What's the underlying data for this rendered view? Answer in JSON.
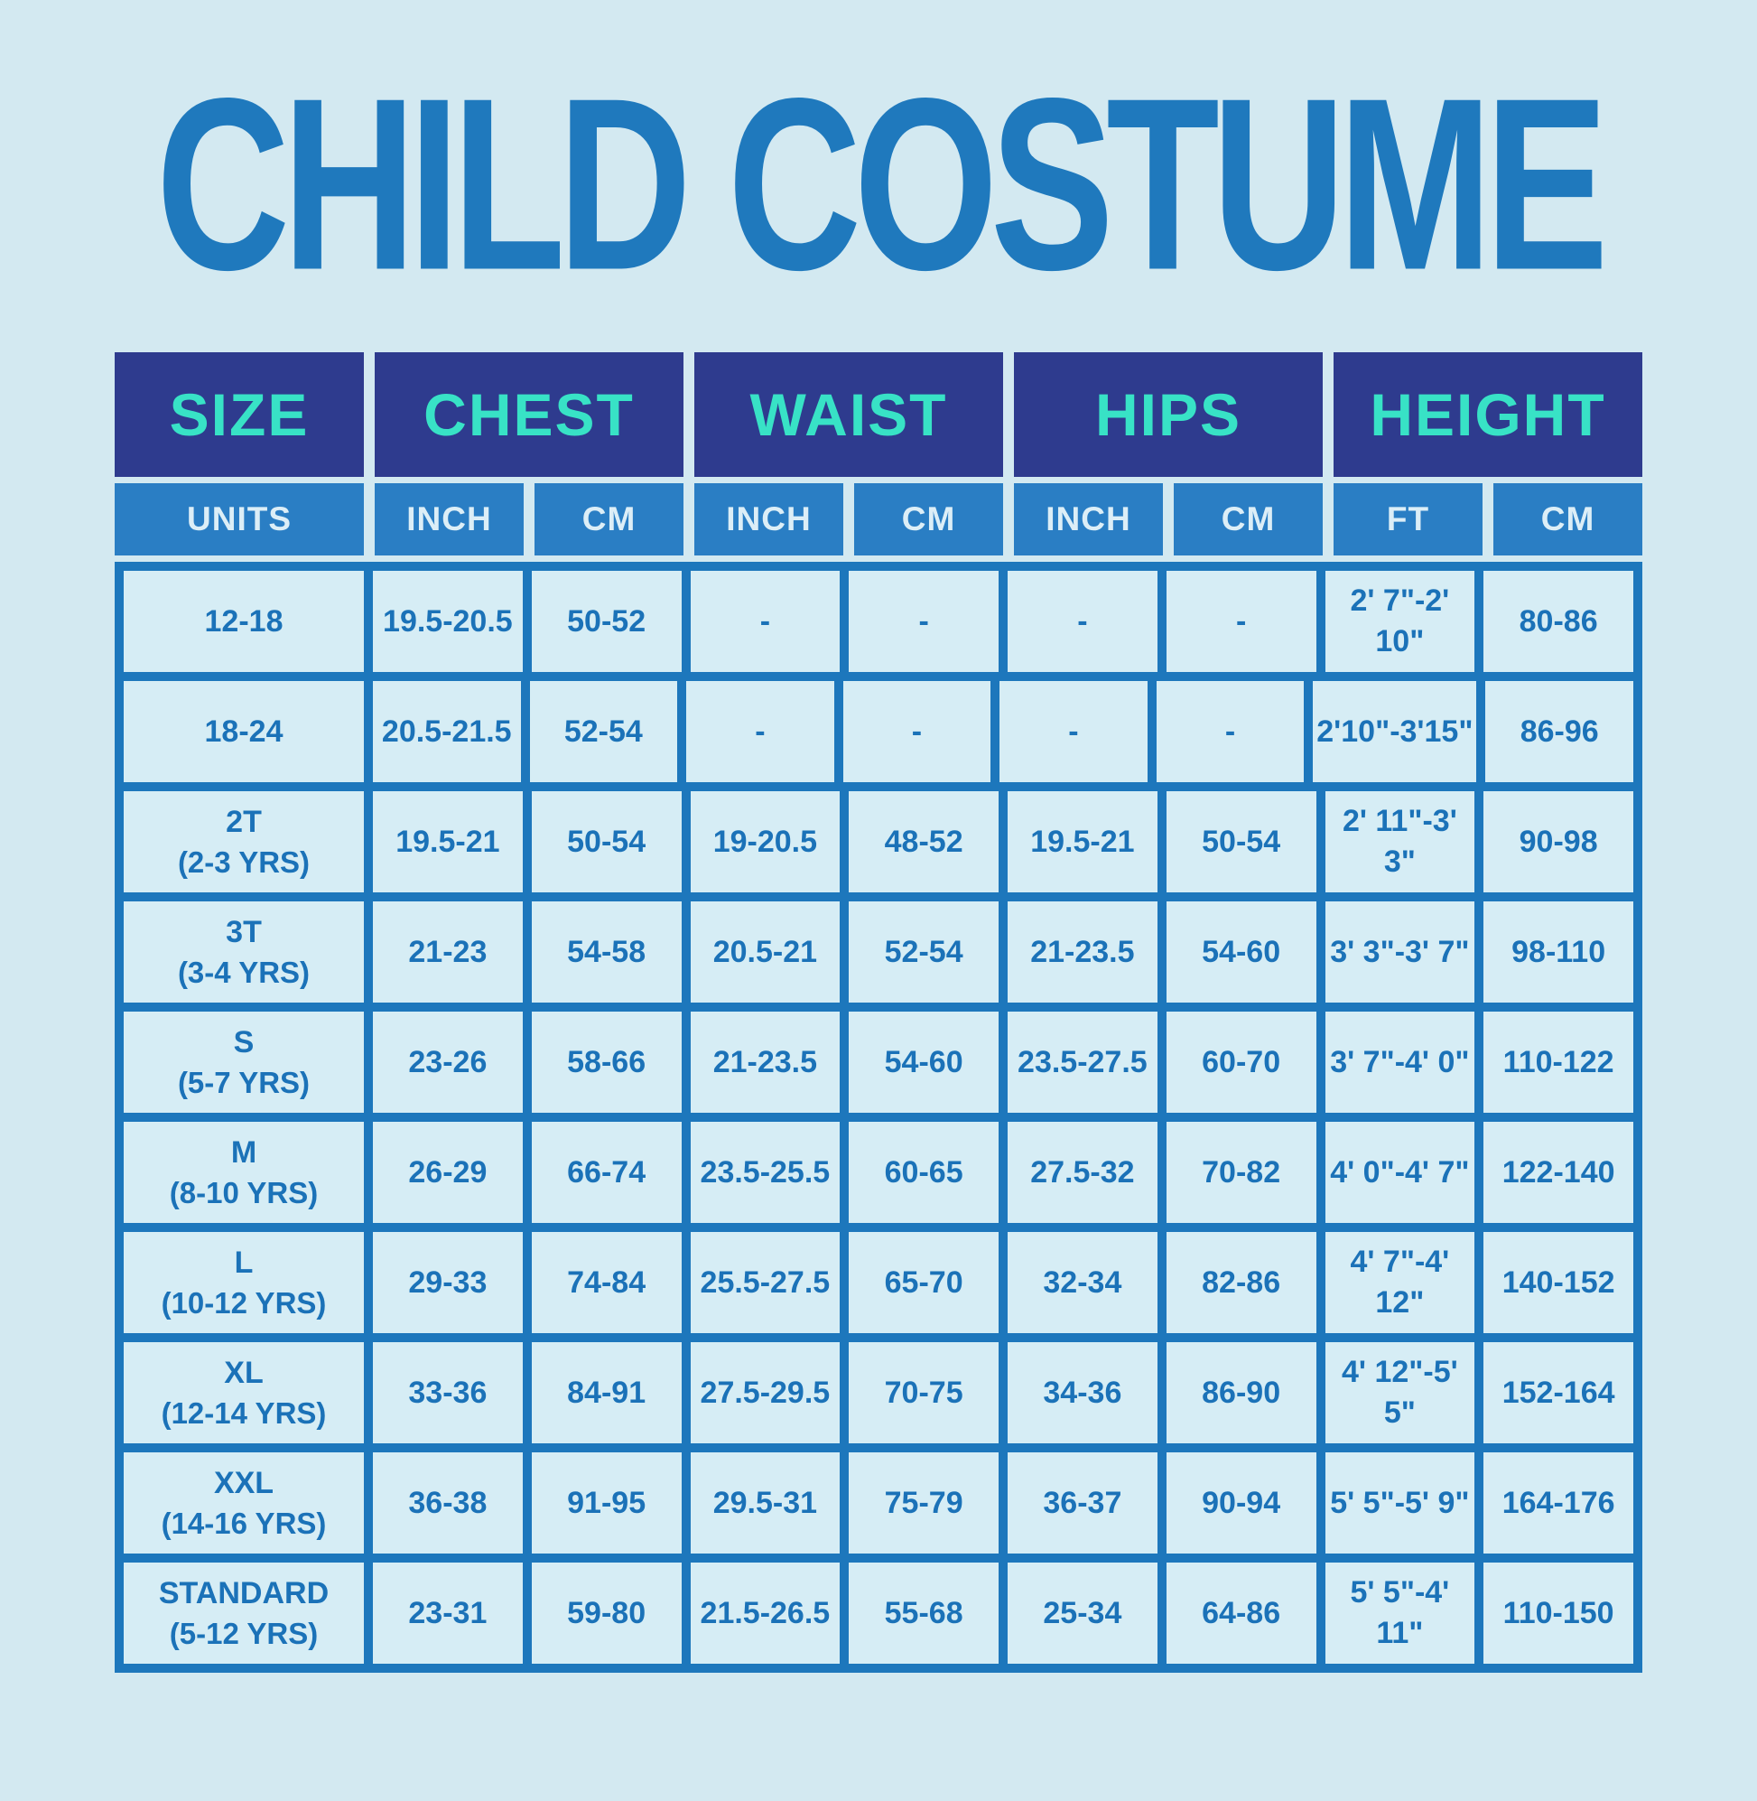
{
  "title": "CHILD COSTUME",
  "colors": {
    "page_background": "#d3e9f1",
    "title_blue": "#1f79bd",
    "header_navy": "#2e3b8e",
    "header_teal_text": "#38e2c6",
    "subheader_blue": "#2a7ec4",
    "subheader_text": "#dceef7",
    "grid_line_blue": "#1d77bc",
    "cell_background": "#d6edf5",
    "cell_text_blue": "#1b72b8"
  },
  "table": {
    "groups": [
      {
        "label": "SIZE",
        "span": 1
      },
      {
        "label": "CHEST",
        "span": 2
      },
      {
        "label": "WAIST",
        "span": 2
      },
      {
        "label": "HIPS",
        "span": 2
      },
      {
        "label": "HEIGHT",
        "span": 2
      }
    ],
    "units": [
      "UNITS",
      "INCH",
      "CM",
      "INCH",
      "CM",
      "INCH",
      "CM",
      "FT",
      "CM"
    ],
    "rows": [
      {
        "size": "12-18",
        "age": "",
        "cells": [
          "19.5-20.5",
          "50-52",
          "-",
          "-",
          "-",
          "-",
          "2' 7\"-2' 10\"",
          "80-86"
        ]
      },
      {
        "size": "18-24",
        "age": "",
        "cells": [
          "20.5-21.5",
          "52-54",
          "-",
          "-",
          "-",
          "-",
          "2'10\"-3'15\"",
          "86-96"
        ]
      },
      {
        "size": "2T",
        "age": "(2-3 YRS)",
        "cells": [
          "19.5-21",
          "50-54",
          "19-20.5",
          "48-52",
          "19.5-21",
          "50-54",
          "2' 11\"-3' 3\"",
          "90-98"
        ]
      },
      {
        "size": "3T",
        "age": "(3-4 YRS)",
        "cells": [
          "21-23",
          "54-58",
          "20.5-21",
          "52-54",
          "21-23.5",
          "54-60",
          "3' 3\"-3' 7\"",
          "98-110"
        ]
      },
      {
        "size": "S",
        "age": "(5-7 YRS)",
        "cells": [
          "23-26",
          "58-66",
          "21-23.5",
          "54-60",
          "23.5-27.5",
          "60-70",
          "3' 7\"-4' 0\"",
          "110-122"
        ]
      },
      {
        "size": "M",
        "age": "(8-10 YRS)",
        "cells": [
          "26-29",
          "66-74",
          "23.5-25.5",
          "60-65",
          "27.5-32",
          "70-82",
          "4' 0\"-4' 7\"",
          "122-140"
        ]
      },
      {
        "size": "L",
        "age": "(10-12 YRS)",
        "cells": [
          "29-33",
          "74-84",
          "25.5-27.5",
          "65-70",
          "32-34",
          "82-86",
          "4' 7\"-4' 12\"",
          "140-152"
        ]
      },
      {
        "size": "XL",
        "age": "(12-14 YRS)",
        "cells": [
          "33-36",
          "84-91",
          "27.5-29.5",
          "70-75",
          "34-36",
          "86-90",
          "4' 12\"-5' 5\"",
          "152-164"
        ]
      },
      {
        "size": "XXL",
        "age": "(14-16 YRS)",
        "cells": [
          "36-38",
          "91-95",
          "29.5-31",
          "75-79",
          "36-37",
          "90-94",
          "5' 5\"-5' 9\"",
          "164-176"
        ]
      },
      {
        "size": "STANDARD",
        "age": "(5-12 YRS)",
        "cells": [
          "23-31",
          "59-80",
          "21.5-26.5",
          "55-68",
          "25-34",
          "64-86",
          "5' 5\"-4' 11\"",
          "110-150"
        ]
      }
    ]
  },
  "chart_data": {
    "type": "table",
    "title": "CHILD COSTUME",
    "column_groups": [
      "SIZE",
      "CHEST",
      "WAIST",
      "HIPS",
      "HEIGHT"
    ],
    "columns": [
      "SIZE / UNITS",
      "CHEST INCH",
      "CHEST CM",
      "WAIST INCH",
      "WAIST CM",
      "HIPS INCH",
      "HIPS CM",
      "HEIGHT FT",
      "HEIGHT CM"
    ],
    "rows": [
      [
        "12-18",
        "19.5-20.5",
        "50-52",
        "-",
        "-",
        "-",
        "-",
        "2' 7\"-2' 10\"",
        "80-86"
      ],
      [
        "18-24",
        "20.5-21.5",
        "52-54",
        "-",
        "-",
        "-",
        "-",
        "2'10\"-3'15\"",
        "86-96"
      ],
      [
        "2T (2-3 YRS)",
        "19.5-21",
        "50-54",
        "19-20.5",
        "48-52",
        "19.5-21",
        "50-54",
        "2' 11\"-3' 3\"",
        "90-98"
      ],
      [
        "3T (3-4 YRS)",
        "21-23",
        "54-58",
        "20.5-21",
        "52-54",
        "21-23.5",
        "54-60",
        "3' 3\"-3' 7\"",
        "98-110"
      ],
      [
        "S (5-7 YRS)",
        "23-26",
        "58-66",
        "21-23.5",
        "54-60",
        "23.5-27.5",
        "60-70",
        "3' 7\"-4' 0\"",
        "110-122"
      ],
      [
        "M (8-10 YRS)",
        "26-29",
        "66-74",
        "23.5-25.5",
        "60-65",
        "27.5-32",
        "70-82",
        "4' 0\"-4' 7\"",
        "122-140"
      ],
      [
        "L (10-12 YRS)",
        "29-33",
        "74-84",
        "25.5-27.5",
        "65-70",
        "32-34",
        "82-86",
        "4' 7\"-4' 12\"",
        "140-152"
      ],
      [
        "XL (12-14 YRS)",
        "33-36",
        "84-91",
        "27.5-29.5",
        "70-75",
        "34-36",
        "86-90",
        "4' 12\"-5' 5\"",
        "152-164"
      ],
      [
        "XXL (14-16 YRS)",
        "36-38",
        "91-95",
        "29.5-31",
        "75-79",
        "36-37",
        "90-94",
        "5' 5\"-5' 9\"",
        "164-176"
      ],
      [
        "STANDARD (5-12 YRS)",
        "23-31",
        "59-80",
        "21.5-26.5",
        "55-68",
        "25-34",
        "64-86",
        "5' 5\"-4' 11\"",
        "110-150"
      ]
    ]
  }
}
